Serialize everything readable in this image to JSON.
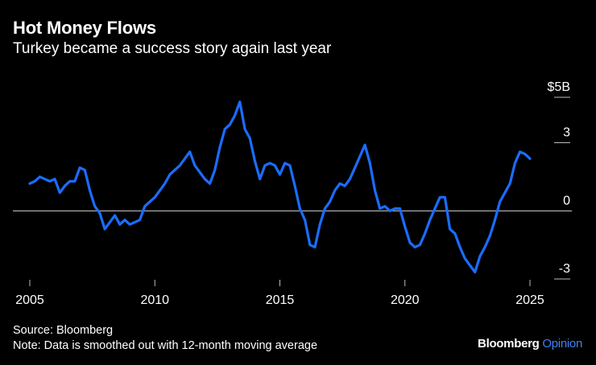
{
  "title": "Hot Money Flows",
  "subtitle": "Turkey became a success story again last year",
  "source": "Source: Bloomberg",
  "note": "Note: Data is smoothed out with 12-month moving average",
  "brand": {
    "name": "Bloomberg",
    "suffix": "Opinion",
    "suffix_color": "#3b82f6"
  },
  "chart_data": {
    "type": "line",
    "title": "Hot Money Flows",
    "subtitle": "Turkey became a success story again last year",
    "xlabel": "",
    "ylabel": "",
    "xlim": [
      2005,
      2025
    ],
    "ylim": [
      -3,
      5
    ],
    "x_ticks": [
      {
        "value": 2005,
        "label": "2005"
      },
      {
        "value": 2010,
        "label": "2010"
      },
      {
        "value": 2015,
        "label": "2015"
      },
      {
        "value": 2020,
        "label": "2020"
      },
      {
        "value": 2025,
        "label": "2025"
      }
    ],
    "y_ticks": [
      {
        "value": 5,
        "label": "$5B"
      },
      {
        "value": 3,
        "label": "3"
      },
      {
        "value": 0,
        "label": "0"
      },
      {
        "value": -3,
        "label": "-3"
      }
    ],
    "grid": false,
    "series_color": "#1a6dff",
    "series": [
      {
        "x": [
          2005.0,
          2005.2,
          2005.4,
          2005.6,
          2005.8,
          2006.0,
          2006.2,
          2006.4,
          2006.6,
          2006.8,
          2007.0,
          2007.2,
          2007.4,
          2007.6,
          2007.8,
          2008.0,
          2008.2,
          2008.4,
          2008.6,
          2008.8,
          2009.0,
          2009.2,
          2009.4,
          2009.6,
          2009.8,
          2010.0,
          2010.2,
          2010.4,
          2010.6,
          2010.8,
          2011.0,
          2011.2,
          2011.4,
          2011.6,
          2011.8,
          2012.0,
          2012.2,
          2012.4,
          2012.6,
          2012.8,
          2013.0,
          2013.2,
          2013.4,
          2013.6,
          2013.8,
          2014.0,
          2014.2,
          2014.4,
          2014.6,
          2014.8,
          2015.0,
          2015.2,
          2015.4,
          2015.6,
          2015.8,
          2016.0,
          2016.2,
          2016.4,
          2016.6,
          2016.8,
          2017.0,
          2017.2,
          2017.4,
          2017.6,
          2017.8,
          2018.0,
          2018.2,
          2018.4,
          2018.6,
          2018.8,
          2019.0,
          2019.2,
          2019.4,
          2019.6,
          2019.8,
          2020.0,
          2020.2,
          2020.4,
          2020.6,
          2020.8,
          2021.0,
          2021.2,
          2021.4,
          2021.6,
          2021.8,
          2022.0,
          2022.2,
          2022.4,
          2022.6,
          2022.8,
          2023.0,
          2023.2,
          2023.4,
          2023.6,
          2023.8,
          2024.0,
          2024.2,
          2024.4,
          2024.6,
          2024.8,
          2025.0
        ],
        "y": [
          1.2,
          1.3,
          1.5,
          1.4,
          1.3,
          1.4,
          0.8,
          1.1,
          1.3,
          1.3,
          1.9,
          1.8,
          0.9,
          0.2,
          -0.1,
          -0.8,
          -0.5,
          -0.2,
          -0.6,
          -0.4,
          -0.6,
          -0.5,
          -0.4,
          0.2,
          0.4,
          0.6,
          0.9,
          1.2,
          1.6,
          1.8,
          2.0,
          2.3,
          2.6,
          2.0,
          1.7,
          1.4,
          1.2,
          1.8,
          2.8,
          3.6,
          3.8,
          4.2,
          4.8,
          3.6,
          3.2,
          2.2,
          1.4,
          2.0,
          2.1,
          2.0,
          1.6,
          2.1,
          2.0,
          1.1,
          0.1,
          -0.4,
          -1.5,
          -1.6,
          -0.6,
          0.1,
          0.4,
          0.9,
          1.2,
          1.1,
          1.4,
          1.9,
          2.4,
          2.9,
          2.1,
          0.9,
          0.1,
          0.2,
          0.0,
          0.1,
          0.1,
          -0.7,
          -1.4,
          -1.6,
          -1.5,
          -1.0,
          -0.4,
          0.1,
          0.6,
          0.6,
          -0.8,
          -1.0,
          -1.6,
          -2.1,
          -2.4,
          -2.7,
          -2.0,
          -1.6,
          -1.1,
          -0.4,
          0.4,
          0.8,
          1.2,
          2.1,
          2.6,
          2.5,
          2.3
        ]
      }
    ]
  }
}
